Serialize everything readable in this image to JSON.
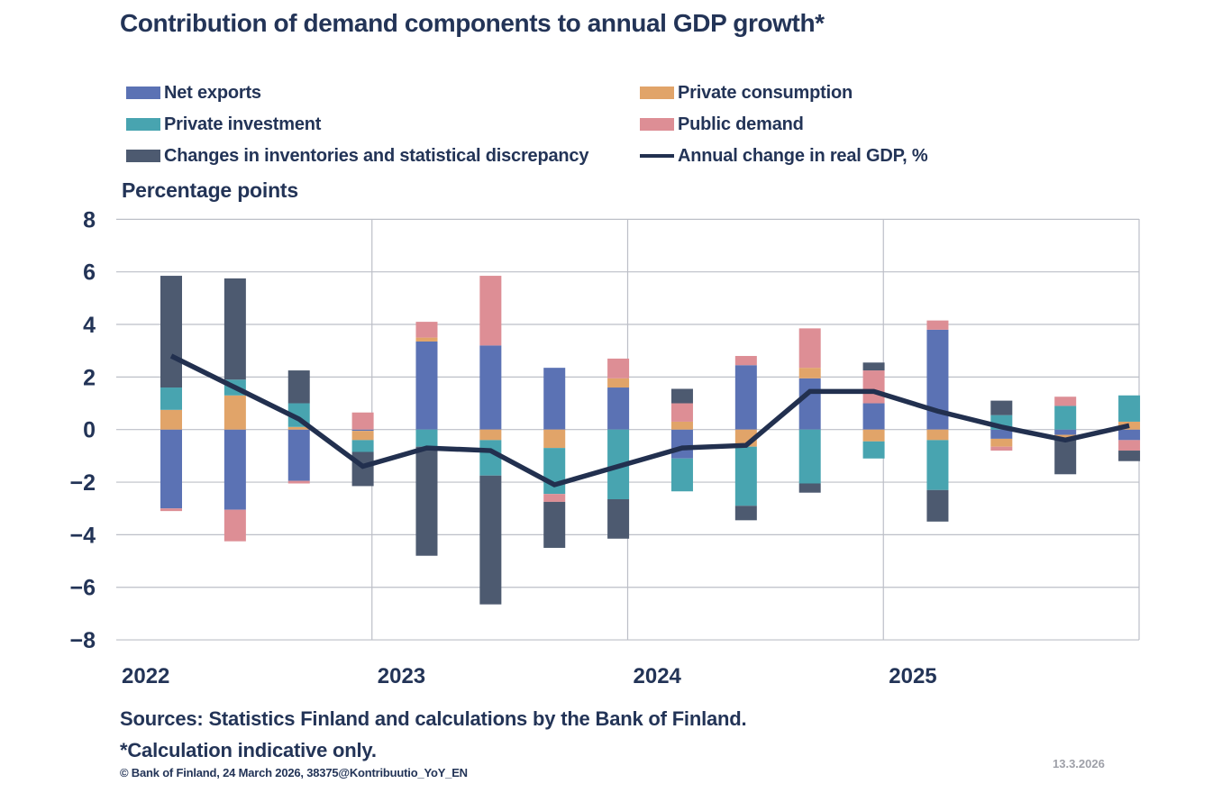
{
  "title": "Contribution of demand components to annual GDP growth*",
  "y_axis_label": "Percentage points",
  "legend": {
    "items": [
      {
        "label": "Net exports",
        "color": "#5B72B4",
        "type": "box"
      },
      {
        "label": "Private consumption",
        "color": "#E1A469",
        "type": "box"
      },
      {
        "label": "Private investment",
        "color": "#48A4B0",
        "type": "box"
      },
      {
        "label": "Public demand",
        "color": "#DD8E95",
        "type": "box"
      },
      {
        "label": "Changes in inventories and statistical discrepancy",
        "color": "#4D5A70",
        "type": "box"
      },
      {
        "label": "Annual change in real GDP, %",
        "color": "#22304F",
        "type": "line"
      }
    ]
  },
  "chart_data": {
    "type": "bar",
    "stacked": true,
    "title": "Contribution of demand components to annual GDP growth*",
    "ylabel": "Percentage points",
    "ylim": [
      -8,
      8
    ],
    "yticks": [
      8,
      6,
      4,
      2,
      0,
      -2,
      -4,
      -6,
      -8
    ],
    "grid": true,
    "legend_position": "top-left two-column",
    "categories": [
      "2022 Q1",
      "2022 Q2",
      "2022 Q3",
      "2022 Q4",
      "2023 Q1",
      "2023 Q2",
      "2023 Q3",
      "2023 Q4",
      "2024 Q1",
      "2024 Q2",
      "2024 Q3",
      "2024 Q4",
      "2025 Q1",
      "2025 Q2",
      "2025 Q3",
      "2025 Q4"
    ],
    "year_labels": [
      "2022",
      "2023",
      "2024",
      "2025"
    ],
    "series": [
      {
        "name": "Net exports",
        "color": "#5B72B4",
        "values": [
          -3.0,
          -3.05,
          -1.95,
          -0.05,
          3.35,
          3.2,
          2.35,
          1.6,
          -1.1,
          2.45,
          1.95,
          1.0,
          3.8,
          -0.35,
          -0.2,
          -0.4
        ]
      },
      {
        "name": "Private consumption",
        "color": "#E1A469",
        "values": [
          0.75,
          1.3,
          0.1,
          -0.35,
          0.15,
          -0.4,
          -0.7,
          0.35,
          0.3,
          -0.65,
          0.4,
          -0.45,
          -0.4,
          -0.3,
          -0.1,
          0.3
        ]
      },
      {
        "name": "Private investment",
        "color": "#48A4B0",
        "values": [
          0.85,
          0.6,
          0.9,
          -0.45,
          -0.65,
          -1.35,
          -1.75,
          -2.65,
          -1.25,
          -2.25,
          -2.05,
          -0.65,
          -1.9,
          0.55,
          0.9,
          1.0
        ]
      },
      {
        "name": "Public demand",
        "color": "#DD8E95",
        "values": [
          -0.1,
          -1.2,
          -0.1,
          0.65,
          0.6,
          2.65,
          -0.3,
          0.75,
          0.7,
          0.35,
          1.5,
          1.25,
          0.35,
          -0.15,
          0.35,
          -0.4
        ]
      },
      {
        "name": "Changes in inventories and statistical discrepancy",
        "color": "#4D5A70",
        "values": [
          4.25,
          3.85,
          1.25,
          -1.3,
          -4.15,
          -4.9,
          -1.75,
          -1.5,
          0.55,
          -0.55,
          -0.35,
          0.3,
          -1.2,
          0.55,
          -1.4,
          -0.4
        ]
      }
    ],
    "line_series": {
      "name": "Annual change in real GDP, %",
      "color": "#22304F",
      "values": [
        2.8,
        1.6,
        0.4,
        -1.4,
        -0.7,
        -0.8,
        -2.1,
        -1.4,
        -0.7,
        -0.6,
        1.45,
        1.45,
        0.7,
        0.1,
        -0.4,
        0.15
      ]
    }
  },
  "footer": {
    "sources": "Sources: Statistics Finland and calculations by the Bank of Finland.",
    "note": "*Calculation indicative only.",
    "copyright": "© Bank of Finland, 24 March 2026,  38375@Kontribuutio_YoY_EN",
    "date": "13.3.2026"
  }
}
